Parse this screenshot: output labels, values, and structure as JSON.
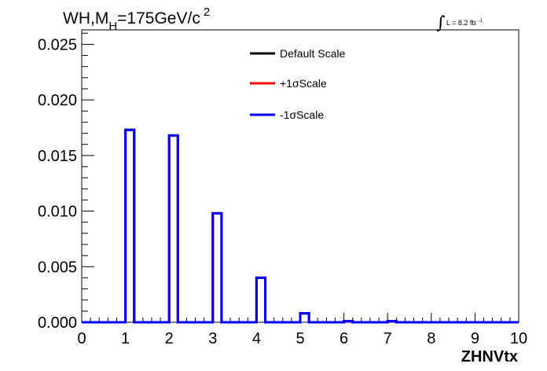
{
  "chart_data": {
    "type": "histogram",
    "title": {
      "main": "WH,M",
      "subscript": "H",
      "rest": "=175GeV/c",
      "superscript": "2"
    },
    "luminosity": {
      "integral": "∫",
      "text": "L = 8.2 fb",
      "superscript": "-1"
    },
    "xlabel": "ZHNVtx",
    "ylabel": "",
    "xlim": [
      0,
      10
    ],
    "ylim": [
      0,
      0.0263
    ],
    "x_ticks": [
      "0",
      "1",
      "2",
      "3",
      "4",
      "5",
      "6",
      "7",
      "8",
      "9",
      "10"
    ],
    "y_ticks": [
      "0.000",
      "0.005",
      "0.010",
      "0.015",
      "0.020",
      "0.025"
    ],
    "bins": [
      {
        "low": 0,
        "high": 1,
        "value": 0.0
      },
      {
        "low": 1,
        "high": 1.2,
        "value": 0.0173
      },
      {
        "low": 1.2,
        "high": 2,
        "value": 0.0
      },
      {
        "low": 2,
        "high": 2.2,
        "value": 0.0168
      },
      {
        "low": 2.2,
        "high": 3,
        "value": 0.0
      },
      {
        "low": 3,
        "high": 3.2,
        "value": 0.0098
      },
      {
        "low": 3.2,
        "high": 4,
        "value": 0.0
      },
      {
        "low": 4,
        "high": 4.2,
        "value": 0.004
      },
      {
        "low": 4.2,
        "high": 5,
        "value": 0.0
      },
      {
        "low": 5,
        "high": 5.2,
        "value": 0.0008
      },
      {
        "low": 5.2,
        "high": 6,
        "value": 0.0
      },
      {
        "low": 6,
        "high": 6.2,
        "value": 0.0001
      },
      {
        "low": 6.2,
        "high": 7,
        "value": 0.0
      },
      {
        "low": 7,
        "high": 7.2,
        "value": 0.0001
      },
      {
        "low": 7.2,
        "high": 10,
        "value": 0.0
      }
    ],
    "series": [
      {
        "name": "Default Scale",
        "color": "#000000"
      },
      {
        "name": "+1σScale",
        "color": "#ff0000"
      },
      {
        "name": "-1σScale",
        "color": "#0000ff"
      }
    ],
    "legend_position": "top-center"
  }
}
